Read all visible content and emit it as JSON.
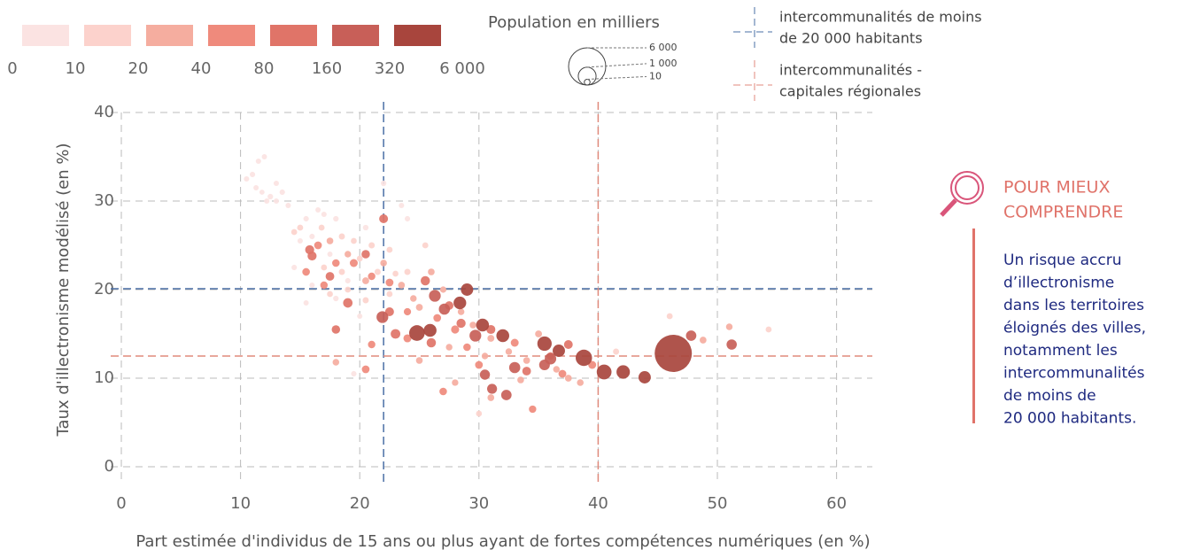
{
  "chart_data": {
    "type": "scatter",
    "xlabel": "Part estimée d'individus de 15 ans ou plus ayant de fortes compétences numériques (en %)",
    "ylabel": "Taux d'illectronisme modélisé (en %)",
    "xlim": [
      0,
      63
    ],
    "ylim": [
      0,
      40
    ],
    "xticks": [
      0,
      10,
      20,
      30,
      40,
      50,
      60
    ],
    "yticks": [
      0,
      10,
      20,
      30,
      40
    ],
    "grid": true,
    "color_legend": {
      "bins": [
        0,
        10,
        20,
        40,
        80,
        160,
        320,
        {
          "value": 6000,
          "label": "6 000"
        }
      ],
      "colors": [
        "#fbe3e2",
        "#fcd2cc",
        "#f5ad9f",
        "#ef8a7c",
        "#e07468",
        "#c85f58",
        "#a8453d"
      ]
    },
    "size_legend": {
      "title": "Population en milliers",
      "values": [
        {
          "value": 6000,
          "label": "6 000"
        },
        {
          "value": 1000,
          "label": "1 000"
        },
        10
      ]
    },
    "reference_lines": [
      {
        "label_lines": [
          "intercommunalités de moins",
          "de 20 000 habitants"
        ],
        "color": "#4a6fa5",
        "x": 22,
        "y": 20.1
      },
      {
        "label_lines": [
          "intercommunalités -",
          "capitales régionales"
        ],
        "color": "#e08a7c",
        "x": 40,
        "y": 12.5
      }
    ],
    "x": [
      11.5,
      12,
      11,
      10.5,
      11.8,
      12.5,
      13,
      11.3,
      13.5,
      14,
      15.5,
      16.5,
      17,
      18,
      16,
      15,
      17.5,
      14.5,
      16,
      18,
      19,
      15.5,
      20,
      19.5,
      22,
      23.5,
      24,
      20.5,
      13,
      12.2,
      15,
      16.8,
      18.5,
      19.5,
      21,
      22.5,
      20,
      18.5,
      17,
      21.5,
      23,
      19,
      17.5,
      20.5,
      22.5,
      24,
      46,
      54.3,
      41.5,
      30,
      25.5,
      14.5,
      17.5,
      19,
      20.5,
      22,
      23.5,
      24.5,
      26,
      25,
      27,
      28.5,
      29.5,
      31,
      32.5,
      34,
      36.5,
      37.5,
      38.5,
      28,
      31,
      33.5,
      18,
      27.5,
      35,
      48.8,
      51,
      25,
      30.5,
      16.5,
      18,
      19.5,
      21,
      22.5,
      24,
      26.5,
      28,
      29,
      30,
      33,
      36,
      24,
      21,
      20.5,
      37,
      27,
      34.5,
      39.5,
      17,
      15.5,
      16,
      17.5,
      19,
      20.5,
      22.5,
      25.5,
      27.5,
      28.5,
      31,
      26,
      34,
      37.5,
      23,
      22,
      18,
      15.8,
      26.3,
      27.1,
      33,
      30.5,
      32.3,
      31.1,
      47.8,
      51.2,
      29.7,
      21.9,
      35.5,
      36,
      38.8,
      40.5,
      42.1,
      43.9,
      24.8,
      25.9,
      35.5,
      36.7,
      28.4,
      30.3,
      32,
      29,
      46.3
    ],
    "y": [
      34.5,
      35,
      33,
      32.5,
      31,
      30.5,
      32,
      31.5,
      31,
      29.5,
      28,
      29,
      28.5,
      28,
      26,
      25.5,
      24,
      22.5,
      20.5,
      19,
      21,
      18.5,
      17,
      10.5,
      32,
      29.5,
      28,
      27,
      30,
      30,
      27,
      27,
      26,
      25.5,
      25,
      24.5,
      23.5,
      22,
      22.5,
      22,
      21.8,
      20,
      19.5,
      18.8,
      19.5,
      22,
      17,
      15.5,
      13,
      6,
      25,
      26.5,
      25.5,
      24,
      21,
      23,
      20.5,
      19,
      22,
      18,
      20,
      17.5,
      16,
      14.5,
      13,
      12,
      11,
      10,
      9.5,
      9.5,
      7.8,
      9.8,
      11.8,
      13.5,
      15,
      14.3,
      15.8,
      12,
      12.5,
      25,
      23,
      23,
      21.5,
      20.8,
      17.5,
      16.8,
      15.5,
      13.5,
      11.5,
      14,
      12.5,
      14.5,
      13.8,
      11,
      10.5,
      8.5,
      6.5,
      11.5,
      20.5,
      22,
      23.8,
      21.5,
      18.5,
      24,
      17.5,
      21,
      18.2,
      16.2,
      15.5,
      14,
      10.8,
      13.8,
      15,
      28,
      15.5,
      24.5,
      19.3,
      17.8,
      11.2,
      10.4,
      8.1,
      8.8,
      14.8,
      13.8,
      14.8,
      16.9,
      11.5,
      12.2,
      12.3,
      10.7,
      10.7,
      10.1,
      15.1,
      15.4,
      13.9,
      13.1,
      18.5,
      16,
      14.8,
      20,
      12.8
    ],
    "size": [
      5,
      4,
      6,
      5,
      3,
      7,
      5,
      4,
      6,
      5,
      6,
      4,
      5,
      7,
      6,
      5,
      4,
      6,
      5,
      7,
      6,
      4,
      5,
      6,
      7,
      5,
      6,
      8,
      4,
      5,
      15,
      14,
      16,
      12,
      18,
      15,
      13,
      16,
      14,
      17,
      12,
      15,
      13,
      16,
      14,
      18,
      15,
      14,
      16,
      12,
      15,
      13,
      30,
      25,
      35,
      28,
      32,
      26,
      30,
      34,
      22,
      28,
      30,
      36,
      25,
      30,
      27,
      33,
      29,
      24,
      31,
      30,
      28,
      26,
      35,
      32,
      27,
      30,
      25,
      60,
      55,
      70,
      50,
      65,
      45,
      60,
      75,
      55,
      62,
      68,
      58,
      72,
      50,
      60,
      65,
      55,
      48,
      70,
      52,
      58,
      120,
      100,
      140,
      90,
      110,
      130,
      95,
      125,
      115,
      135,
      100,
      105,
      150,
      110,
      90,
      120,
      300,
      250,
      250,
      180,
      200,
      170,
      200,
      190,
      300,
      300,
      220,
      280,
      800,
      600,
      450,
      350,
      700,
      400,
      550,
      350,
      380,
      400,
      400,
      350,
      6000
    ]
  },
  "info_panel": {
    "title_lines": [
      "POUR MIEUX",
      "COMPRENDRE"
    ],
    "text_lines": [
      "Un risque accru",
      "d’illectronisme",
      "dans les territoires",
      "éloignés des villes,",
      "notamment les",
      "intercommunalités",
      "de moins de",
      "20 000 habitants."
    ]
  }
}
